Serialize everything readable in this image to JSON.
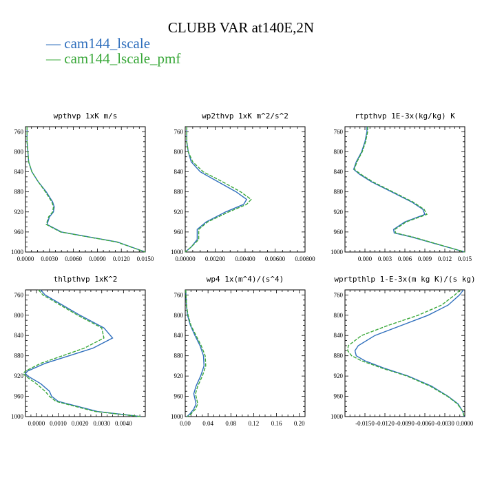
{
  "title": "CLUBB VAR at140E,2N",
  "legend": [
    {
      "name": "cam144_lscale",
      "color": "#2f6fbd",
      "dash": "solid"
    },
    {
      "name": "cam144_lscale_pmf",
      "color": "#3aa83a",
      "dash": "dashed"
    }
  ],
  "chart_data": [
    {
      "type": "line",
      "title": "wpthvp  1xK m/s",
      "xlim": [
        0,
        0.015
      ],
      "xticks": [
        "0.0000",
        "0.0030",
        "0.0060",
        "0.0090",
        "0.0120",
        "0.0150"
      ],
      "ylim": [
        750,
        1000
      ],
      "yticks": [
        "760",
        "800",
        "840",
        "880",
        "920",
        "960",
        "1000"
      ],
      "series": [
        {
          "name": "cam144_lscale",
          "y": [
            750,
            760,
            780,
            800,
            820,
            840,
            860,
            880,
            900,
            910,
            920,
            930,
            945,
            960,
            970,
            980,
            1000
          ],
          "x": [
            0.0002,
            0.0002,
            0.0002,
            0.0003,
            0.0004,
            0.0008,
            0.0016,
            0.0026,
            0.0034,
            0.0036,
            0.0035,
            0.003,
            0.0027,
            0.0045,
            0.008,
            0.0115,
            0.015
          ]
        },
        {
          "name": "cam144_lscale_pmf",
          "y": [
            750,
            760,
            780,
            800,
            820,
            840,
            860,
            880,
            900,
            910,
            920,
            930,
            945,
            960,
            970,
            980,
            1000
          ],
          "x": [
            0.0002,
            0.0002,
            0.0002,
            0.0003,
            0.0004,
            0.0008,
            0.0016,
            0.0025,
            0.0033,
            0.0035,
            0.0034,
            0.0029,
            0.0026,
            0.0044,
            0.0079,
            0.0114,
            0.015
          ]
        }
      ]
    },
    {
      "type": "line",
      "title": "wp2thvp  1xK m^2/s^2",
      "xlim": [
        0,
        0.008
      ],
      "xticks": [
        "0.00000",
        "0.00200",
        "0.00400",
        "0.00600",
        "0.00800"
      ],
      "ylim": [
        750,
        1000
      ],
      "yticks": [
        "760",
        "800",
        "840",
        "880",
        "920",
        "960",
        "1000"
      ],
      "series": [
        {
          "name": "cam144_lscale",
          "y": [
            750,
            780,
            800,
            820,
            840,
            860,
            880,
            895,
            905,
            920,
            940,
            955,
            965,
            975,
            990,
            1000
          ],
          "x": [
            0.0001,
            0.0001,
            0.0002,
            0.0004,
            0.001,
            0.0022,
            0.0034,
            0.0041,
            0.0039,
            0.0027,
            0.0014,
            0.0008,
            0.0008,
            0.0008,
            0.0004,
            0.0
          ]
        },
        {
          "name": "cam144_lscale_pmf",
          "y": [
            750,
            780,
            800,
            820,
            840,
            860,
            880,
            895,
            905,
            920,
            940,
            955,
            965,
            975,
            990,
            1000
          ],
          "x": [
            0.0001,
            0.0001,
            0.0002,
            0.0005,
            0.0012,
            0.0025,
            0.0037,
            0.0044,
            0.0041,
            0.0029,
            0.0015,
            0.0009,
            0.0009,
            0.0009,
            0.0004,
            0.0
          ]
        }
      ]
    },
    {
      "type": "line",
      "title": "rtpthvp  1E-3x(kg/kg) K",
      "xlim": [
        -0.003,
        0.015
      ],
      "xticks": [
        "0.000",
        "0.003",
        "0.006",
        "0.009",
        "0.012",
        "0.015"
      ],
      "ylim": [
        750,
        1000
      ],
      "yticks": [
        "760",
        "800",
        "840",
        "880",
        "920",
        "960",
        "1000"
      ],
      "series": [
        {
          "name": "cam144_lscale",
          "y": [
            750,
            760,
            780,
            800,
            820,
            835,
            845,
            860,
            880,
            900,
            915,
            925,
            940,
            955,
            962,
            970,
            985,
            1000
          ],
          "x": [
            0.0003,
            0.0003,
            0.0,
            -0.0005,
            -0.0013,
            -0.0017,
            -0.0008,
            0.001,
            0.004,
            0.007,
            0.0087,
            0.009,
            0.006,
            0.0043,
            0.0044,
            0.007,
            0.011,
            0.015
          ]
        },
        {
          "name": "cam144_lscale_pmf",
          "y": [
            750,
            760,
            780,
            800,
            820,
            835,
            845,
            860,
            880,
            900,
            915,
            925,
            940,
            955,
            962,
            970,
            985,
            1000
          ],
          "x": [
            0.0004,
            0.0004,
            0.0001,
            -0.0004,
            -0.0012,
            -0.0016,
            -0.0006,
            0.0012,
            0.0042,
            0.0072,
            0.0089,
            0.0093,
            0.0062,
            0.0045,
            0.0046,
            0.0072,
            0.0111,
            0.015
          ]
        }
      ]
    },
    {
      "type": "line",
      "title": "thlpthvp  1xK^2",
      "xlim": [
        -0.0005,
        0.005
      ],
      "xticks": [
        "0.0000",
        "0.0010",
        "0.0020",
        "0.0030",
        "0.0040"
      ],
      "ylim": [
        750,
        1000
      ],
      "yticks": [
        "760",
        "800",
        "840",
        "880",
        "920",
        "960",
        "1000"
      ],
      "series": [
        {
          "name": "cam144_lscale",
          "y": [
            750,
            760,
            780,
            800,
            825,
            845,
            865,
            880,
            895,
            910,
            915,
            920,
            935,
            950,
            960,
            970,
            990,
            1000
          ],
          "x": [
            0.0002,
            0.0004,
            0.0012,
            0.002,
            0.0031,
            0.0035,
            0.0026,
            0.0015,
            0.0004,
            -0.0004,
            -0.0005,
            -0.0004,
            0.0002,
            0.0006,
            0.0007,
            0.001,
            0.0028,
            0.0048
          ]
        },
        {
          "name": "cam144_lscale_pmf",
          "y": [
            750,
            760,
            780,
            800,
            825,
            845,
            865,
            880,
            895,
            910,
            915,
            920,
            935,
            950,
            960,
            970,
            990,
            1000
          ],
          "x": [
            0.0001,
            0.0003,
            0.0011,
            0.0019,
            0.003,
            0.0031,
            0.0022,
            0.0012,
            0.0002,
            -0.0005,
            -0.0006,
            -0.0005,
            0.0,
            0.0004,
            0.0006,
            0.0009,
            0.0027,
            0.0048
          ]
        }
      ]
    },
    {
      "type": "line",
      "title": "wp4  1x(m^4)/(s^4)",
      "xlim": [
        0,
        0.21
      ],
      "xticks": [
        "0.00",
        "0.04",
        "0.08",
        "0.12",
        "0.16",
        "0.20"
      ],
      "ylim": [
        750,
        1000
      ],
      "yticks": [
        "760",
        "800",
        "840",
        "880",
        "920",
        "960",
        "1000"
      ],
      "series": [
        {
          "name": "cam144_lscale",
          "y": [
            750,
            780,
            800,
            820,
            840,
            860,
            880,
            900,
            920,
            940,
            955,
            965,
            975,
            985,
            995,
            1000
          ],
          "x": [
            0.001,
            0.002,
            0.004,
            0.009,
            0.017,
            0.026,
            0.032,
            0.033,
            0.027,
            0.019,
            0.015,
            0.017,
            0.019,
            0.015,
            0.008,
            0.003
          ]
        },
        {
          "name": "cam144_lscale_pmf",
          "y": [
            750,
            780,
            800,
            820,
            840,
            860,
            880,
            900,
            920,
            940,
            955,
            965,
            975,
            985,
            995,
            1000
          ],
          "x": [
            0.001,
            0.002,
            0.005,
            0.01,
            0.019,
            0.028,
            0.035,
            0.036,
            0.03,
            0.022,
            0.018,
            0.02,
            0.022,
            0.018,
            0.01,
            0.004
          ]
        }
      ]
    },
    {
      "type": "line",
      "title": "wprtpthlp  1-E-3x(m kg K)/(s kg)",
      "xlim": [
        -0.018,
        0.0
      ],
      "xticks": [
        "-0.0150",
        "-0.0120",
        "-0.0090",
        "-0.0060",
        "-0.0030",
        "0.0000"
      ],
      "ylim": [
        750,
        1000
      ],
      "yticks": [
        "760",
        "800",
        "840",
        "880",
        "920",
        "960",
        "1000"
      ],
      "series": [
        {
          "name": "cam144_lscale",
          "y": [
            750,
            760,
            780,
            800,
            820,
            840,
            860,
            870,
            880,
            890,
            905,
            920,
            940,
            960,
            975,
            990,
            1000
          ],
          "x": [
            -0.0002,
            -0.0008,
            -0.0025,
            -0.0055,
            -0.0095,
            -0.0135,
            -0.016,
            -0.0165,
            -0.0163,
            -0.015,
            -0.012,
            -0.0085,
            -0.005,
            -0.0025,
            -0.001,
            -0.0003,
            -0.0001
          ]
        },
        {
          "name": "cam144_lscale_pmf",
          "y": [
            750,
            760,
            780,
            800,
            820,
            840,
            860,
            870,
            880,
            890,
            905,
            920,
            940,
            960,
            975,
            990,
            1000
          ],
          "x": [
            -0.0007,
            -0.0015,
            -0.0035,
            -0.007,
            -0.0115,
            -0.0155,
            -0.0175,
            -0.0176,
            -0.017,
            -0.0155,
            -0.0123,
            -0.0087,
            -0.0052,
            -0.0026,
            -0.0011,
            -0.0003,
            -0.0001
          ]
        }
      ]
    }
  ]
}
